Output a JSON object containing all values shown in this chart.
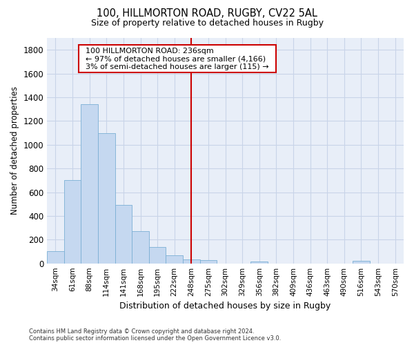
{
  "title1": "100, HILLMORTON ROAD, RUGBY, CV22 5AL",
  "title2": "Size of property relative to detached houses in Rugby",
  "xlabel": "Distribution of detached houses by size in Rugby",
  "ylabel": "Number of detached properties",
  "footnote": "Contains HM Land Registry data © Crown copyright and database right 2024.\nContains public sector information licensed under the Open Government Licence v3.0.",
  "bar_labels": [
    "34sqm",
    "61sqm",
    "88sqm",
    "114sqm",
    "141sqm",
    "168sqm",
    "195sqm",
    "222sqm",
    "248sqm",
    "275sqm",
    "302sqm",
    "329sqm",
    "356sqm",
    "382sqm",
    "409sqm",
    "436sqm",
    "463sqm",
    "490sqm",
    "516sqm",
    "543sqm",
    "570sqm"
  ],
  "bar_values": [
    100,
    700,
    1340,
    1100,
    490,
    270,
    140,
    70,
    35,
    30,
    0,
    0,
    15,
    0,
    0,
    0,
    0,
    0,
    20,
    0,
    0
  ],
  "bar_color": "#c5d8f0",
  "bar_edge_color": "#7aafd4",
  "annotation_line1": "100 HILLMORTON ROAD: 236sqm",
  "annotation_line2": "← 97% of detached houses are smaller (4,166)",
  "annotation_line3": "3% of semi-detached houses are larger (115) →",
  "vline_color": "#cc0000",
  "annotation_box_edgecolor": "#cc0000",
  "vline_x_index": 8,
  "ylim": [
    0,
    1900
  ],
  "yticks": [
    0,
    200,
    400,
    600,
    800,
    1000,
    1200,
    1400,
    1600,
    1800
  ],
  "bg_color": "#ffffff",
  "plot_bg_color": "#e8eef8",
  "grid_color": "#c8d4e8"
}
